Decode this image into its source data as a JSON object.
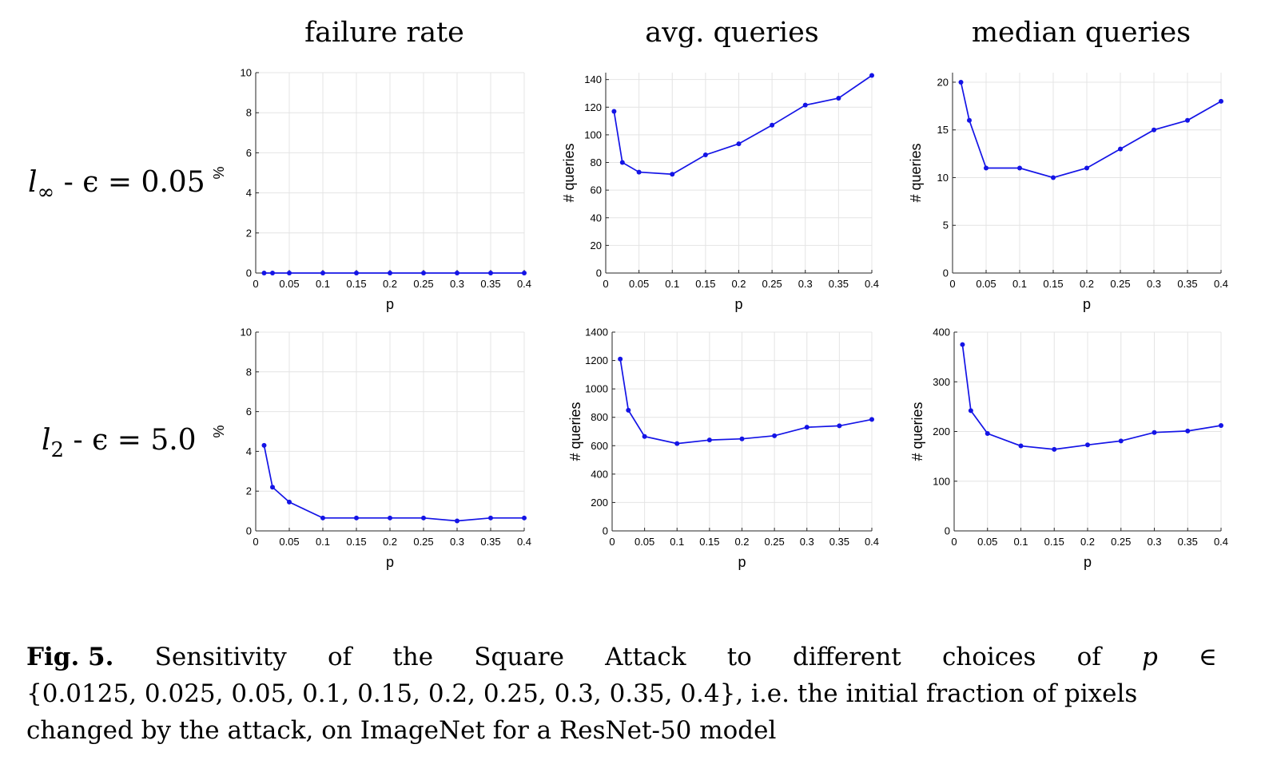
{
  "column_titles": [
    "failure rate",
    "avg. queries",
    "median queries"
  ],
  "row_labels": [
    {
      "name": "l",
      "subscript": "∞",
      "rest": " - ϵ = 0.05"
    },
    {
      "name": "l",
      "subscript": "2",
      "rest": " - ϵ = 5.0"
    }
  ],
  "caption": {
    "figure_label": "Fig. 5.",
    "line1_words": [
      "Sensitivity",
      "of",
      "the",
      "Square",
      "Attack",
      "to",
      "different",
      "choices",
      "of",
      "p",
      "∈"
    ],
    "line2": "{0.0125, 0.025, 0.05, 0.1, 0.15, 0.2, 0.25, 0.3, 0.35, 0.4}, i.e. the initial fraction of pixels",
    "line3": "changed by the attack, on ImageNet for a ResNet-50 model"
  },
  "style": {
    "series_color": "#1414e6"
  },
  "chart_data": [
    {
      "type": "line",
      "column_title": "failure rate",
      "row_label": "l∞ - ϵ = 0.05",
      "xlabel": "p",
      "ylabel": "%",
      "xlim": [
        0,
        0.4
      ],
      "ylim": [
        0,
        10
      ],
      "xticks": [
        0,
        0.05,
        0.1,
        0.15,
        0.2,
        0.25,
        0.3,
        0.35,
        0.4
      ],
      "xtick_labels": [
        "0",
        "0.05",
        "0.1",
        "0.15",
        "0.2",
        "0.25",
        "0.3",
        "0.35",
        "0.4"
      ],
      "yticks": [
        0,
        2,
        4,
        6,
        8,
        10
      ],
      "ytick_labels": [
        "0",
        "2",
        "4",
        "6",
        "8",
        "10"
      ],
      "grid": true,
      "x": [
        0.0125,
        0.025,
        0.05,
        0.1,
        0.15,
        0.2,
        0.25,
        0.3,
        0.35,
        0.4
      ],
      "y": [
        0,
        0,
        0,
        0,
        0,
        0,
        0,
        0,
        0,
        0
      ]
    },
    {
      "type": "line",
      "column_title": "avg. queries",
      "row_label": "l∞ - ϵ = 0.05",
      "xlabel": "p",
      "ylabel": "# queries",
      "xlim": [
        0,
        0.4
      ],
      "ylim": [
        0,
        145
      ],
      "xticks": [
        0,
        0.05,
        0.1,
        0.15,
        0.2,
        0.25,
        0.3,
        0.35,
        0.4
      ],
      "xtick_labels": [
        "0",
        "0.05",
        "0.1",
        "0.15",
        "0.2",
        "0.25",
        "0.3",
        "0.35",
        "0.4"
      ],
      "yticks": [
        0,
        20,
        40,
        60,
        80,
        100,
        120,
        140
      ],
      "ytick_labels": [
        "0",
        "20",
        "40",
        "60",
        "80",
        "100",
        "120",
        "140"
      ],
      "grid": true,
      "x": [
        0.0125,
        0.025,
        0.05,
        0.1,
        0.15,
        0.2,
        0.25,
        0.3,
        0.35,
        0.4
      ],
      "y": [
        117,
        80,
        73,
        71.5,
        85.5,
        93.5,
        107,
        121.5,
        126.5,
        143
      ]
    },
    {
      "type": "line",
      "column_title": "median queries",
      "row_label": "l∞ - ϵ = 0.05",
      "xlabel": "p",
      "ylabel": "# queries",
      "xlim": [
        0,
        0.4
      ],
      "ylim": [
        0,
        21
      ],
      "xticks": [
        0,
        0.05,
        0.1,
        0.15,
        0.2,
        0.25,
        0.3,
        0.35,
        0.4
      ],
      "xtick_labels": [
        "0",
        "0.05",
        "0.1",
        "0.15",
        "0.2",
        "0.25",
        "0.3",
        "0.35",
        "0.4"
      ],
      "yticks": [
        0,
        5,
        10,
        15,
        20
      ],
      "ytick_labels": [
        "0",
        "5",
        "10",
        "15",
        "20"
      ],
      "grid": true,
      "x": [
        0.0125,
        0.025,
        0.05,
        0.1,
        0.15,
        0.2,
        0.25,
        0.3,
        0.35,
        0.4
      ],
      "y": [
        20,
        16,
        11,
        11,
        10,
        11,
        13,
        15,
        16,
        18
      ]
    },
    {
      "type": "line",
      "column_title": "failure rate",
      "row_label": "l2 - ϵ = 5.0",
      "xlabel": "p",
      "ylabel": "%",
      "xlim": [
        0,
        0.4
      ],
      "ylim": [
        0,
        10
      ],
      "xticks": [
        0,
        0.05,
        0.1,
        0.15,
        0.2,
        0.25,
        0.3,
        0.35,
        0.4
      ],
      "xtick_labels": [
        "0",
        "0.05",
        "0.1",
        "0.15",
        "0.2",
        "0.25",
        "0.3",
        "0.35",
        "0.4"
      ],
      "yticks": [
        0,
        2,
        4,
        6,
        8,
        10
      ],
      "ytick_labels": [
        "0",
        "2",
        "4",
        "6",
        "8",
        "10"
      ],
      "grid": true,
      "x": [
        0.0125,
        0.025,
        0.05,
        0.1,
        0.15,
        0.2,
        0.25,
        0.3,
        0.35,
        0.4
      ],
      "y": [
        4.3,
        2.2,
        1.45,
        0.65,
        0.65,
        0.65,
        0.65,
        0.5,
        0.65,
        0.65
      ]
    },
    {
      "type": "line",
      "column_title": "avg. queries",
      "row_label": "l2 - ϵ = 5.0",
      "xlabel": "p",
      "ylabel": "# queries",
      "xlim": [
        0,
        0.4
      ],
      "ylim": [
        0,
        1400
      ],
      "xticks": [
        0,
        0.05,
        0.1,
        0.15,
        0.2,
        0.25,
        0.3,
        0.35,
        0.4
      ],
      "xtick_labels": [
        "0",
        "0.05",
        "0.1",
        "0.15",
        "0.2",
        "0.25",
        "0.3",
        "0.35",
        "0.4"
      ],
      "yticks": [
        0,
        200,
        400,
        600,
        800,
        1000,
        1200,
        1400
      ],
      "ytick_labels": [
        "0",
        "200",
        "400",
        "600",
        "800",
        "1000",
        "1200",
        "1400"
      ],
      "grid": true,
      "x": [
        0.0125,
        0.025,
        0.05,
        0.1,
        0.15,
        0.2,
        0.25,
        0.3,
        0.35,
        0.4
      ],
      "y": [
        1210,
        850,
        665,
        615,
        640,
        648,
        670,
        730,
        740,
        785
      ]
    },
    {
      "type": "line",
      "column_title": "median queries",
      "row_label": "l2 - ϵ = 5.0",
      "xlabel": "p",
      "ylabel": "# queries",
      "xlim": [
        0,
        0.4
      ],
      "ylim": [
        0,
        400
      ],
      "xticks": [
        0,
        0.05,
        0.1,
        0.15,
        0.2,
        0.25,
        0.3,
        0.35,
        0.4
      ],
      "xtick_labels": [
        "0",
        "0.05",
        "0.1",
        "0.15",
        "0.2",
        "0.25",
        "0.3",
        "0.35",
        "0.4"
      ],
      "yticks": [
        0,
        100,
        200,
        300,
        400
      ],
      "ytick_labels": [
        "0",
        "100",
        "200",
        "300",
        "400"
      ],
      "grid": true,
      "x": [
        0.0125,
        0.025,
        0.05,
        0.1,
        0.15,
        0.2,
        0.25,
        0.3,
        0.35,
        0.4
      ],
      "y": [
        375,
        242,
        196,
        171,
        164,
        173,
        181,
        198,
        201,
        212
      ]
    }
  ]
}
